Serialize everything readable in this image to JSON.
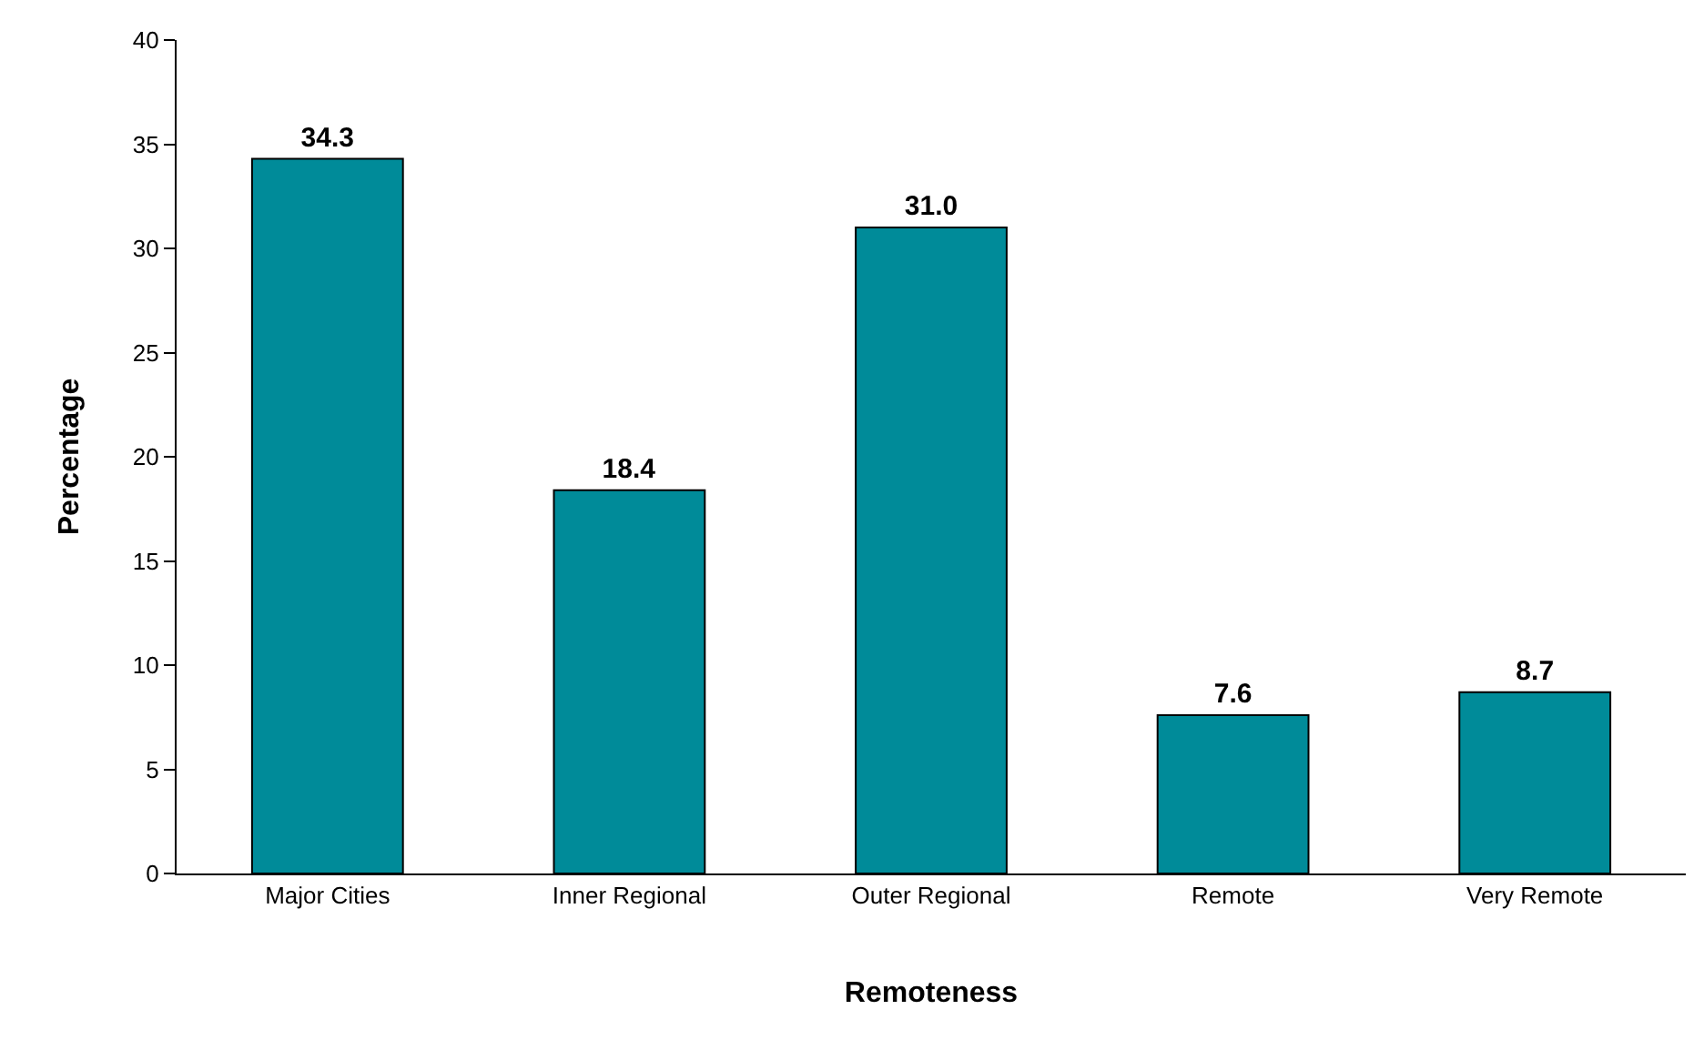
{
  "chart_data": {
    "type": "bar",
    "xlabel": "Remoteness",
    "ylabel": "Percentage",
    "categories": [
      "Major Cities",
      "Inner Regional",
      "Outer Regional",
      "Remote",
      "Very Remote"
    ],
    "values": [
      34.3,
      18.4,
      31.0,
      7.6,
      8.7
    ],
    "value_labels": [
      "34.3",
      "18.4",
      "31.0",
      "7.6",
      "8.7"
    ],
    "color": "#008b99",
    "ylim": [
      0,
      40
    ],
    "yticks": [
      0,
      5,
      10,
      15,
      20,
      25,
      30,
      35,
      40
    ]
  }
}
